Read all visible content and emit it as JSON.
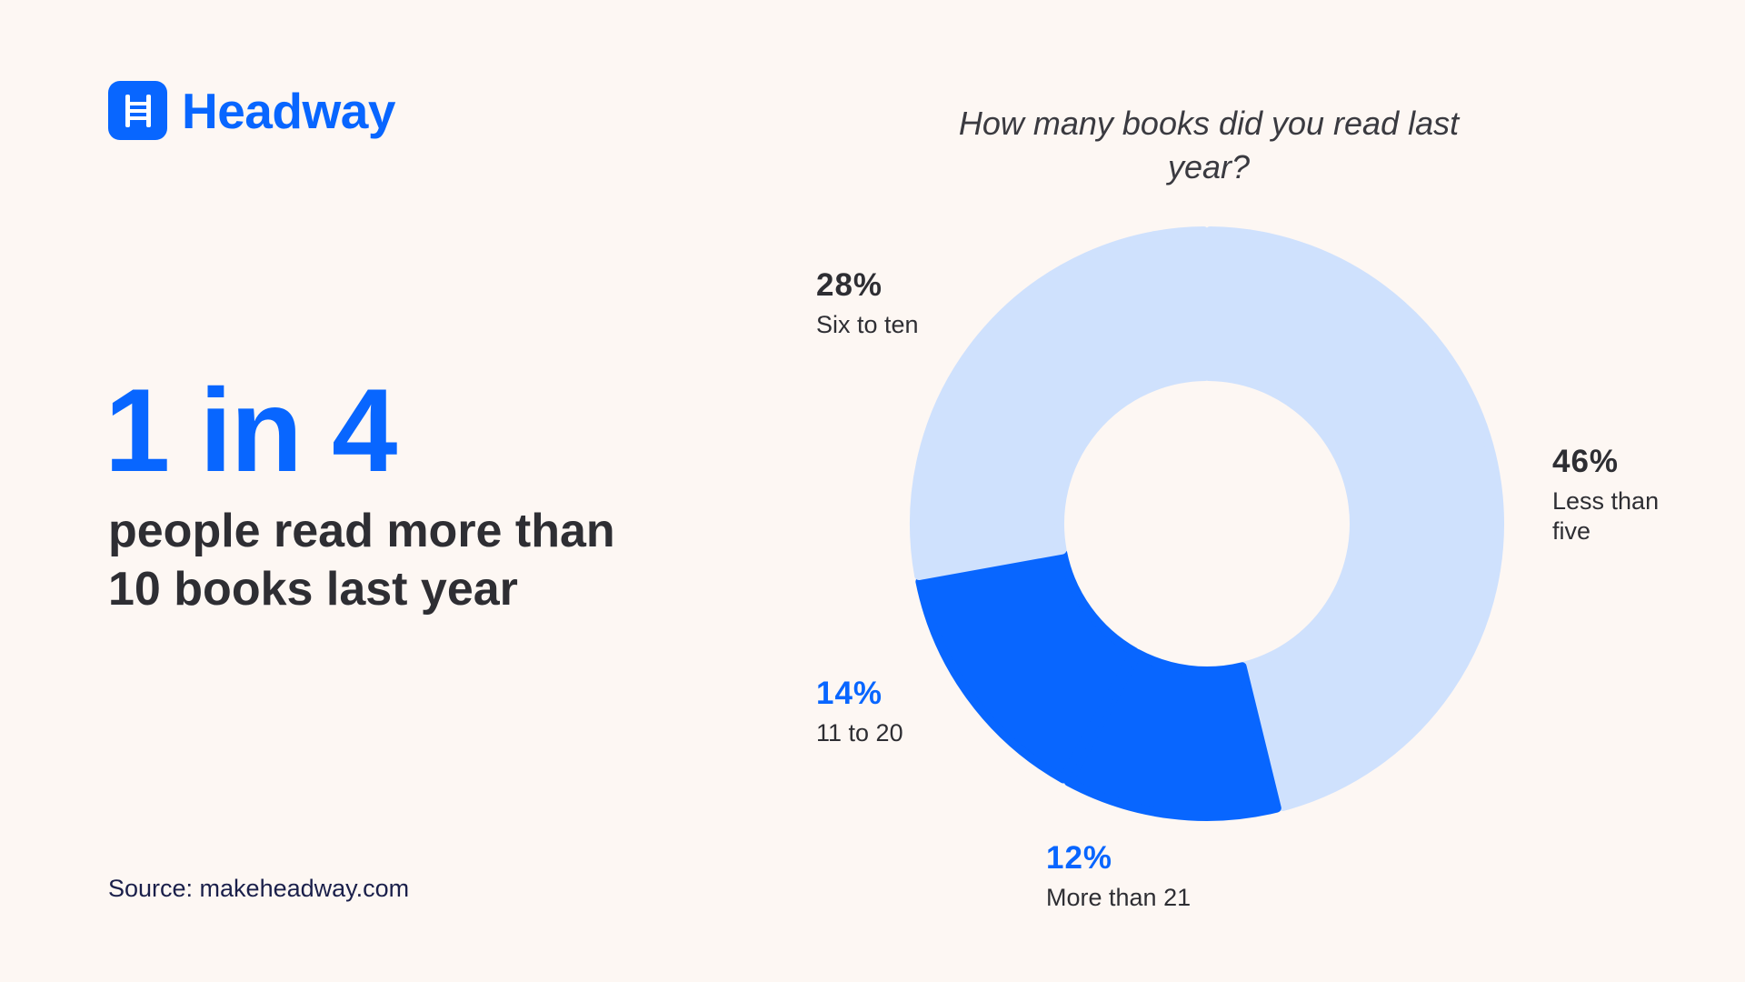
{
  "brand": {
    "name": "Headway",
    "color": "#0866ff",
    "icon": "ladder-book-icon"
  },
  "headline": {
    "stat": "1 in 4",
    "caption_line1": "people read more than",
    "caption_line2": "10 books last year"
  },
  "source": "Source: makeheadway.com",
  "colors": {
    "highlight": "#0866ff",
    "light": "#cfe1fd",
    "background": "#fdf7f3"
  },
  "chart_data": {
    "type": "pie",
    "style": "donut",
    "title": "How many books did you read last year?",
    "slices": [
      {
        "label": "Less than five",
        "value": 46,
        "display": "46%",
        "color": "#cfe1fd"
      },
      {
        "label": "More than 21",
        "value": 12,
        "display": "12%",
        "color": "#0866ff"
      },
      {
        "label": "11 to 20",
        "value": 14,
        "display": "14%",
        "color": "#0866ff"
      },
      {
        "label": "Six to ten",
        "value": 28,
        "display": "28%",
        "color": "#cfe1fd"
      }
    ],
    "start_angle": "top, clockwise"
  }
}
